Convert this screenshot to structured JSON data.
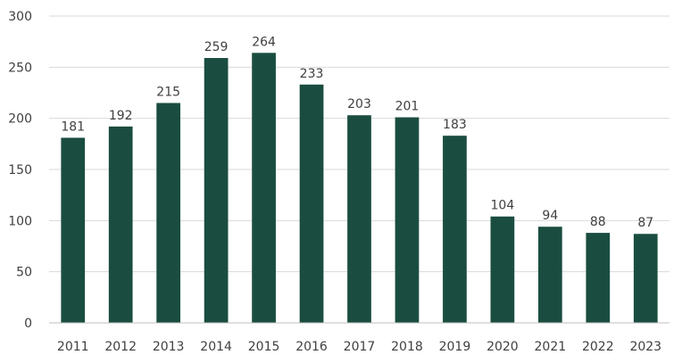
{
  "chart_data": {
    "type": "bar",
    "title": "",
    "xlabel": "",
    "ylabel": "",
    "categories": [
      "2011",
      "2012",
      "2013",
      "2014",
      "2015",
      "2016",
      "2017",
      "2018",
      "2019",
      "2020",
      "2021",
      "2022",
      "2023"
    ],
    "values": [
      181,
      192,
      215,
      259,
      264,
      233,
      203,
      201,
      183,
      104,
      94,
      88,
      87
    ],
    "data_labels": [
      "181",
      "192",
      "215",
      "259",
      "264",
      "233",
      "203",
      "201",
      "183",
      "104",
      "94",
      "88",
      "87"
    ],
    "ylim": [
      0,
      300
    ],
    "yticks": [
      0,
      50,
      100,
      150,
      200,
      250,
      300
    ],
    "ytick_labels": [
      "0",
      "50",
      "100",
      "150",
      "200",
      "250",
      "300"
    ],
    "grid": true,
    "legend": "none",
    "colors": {
      "bar": "#1a4d40",
      "grid": "#d9d9d9",
      "axis": "#bfbfbf",
      "text": "#404040"
    }
  }
}
